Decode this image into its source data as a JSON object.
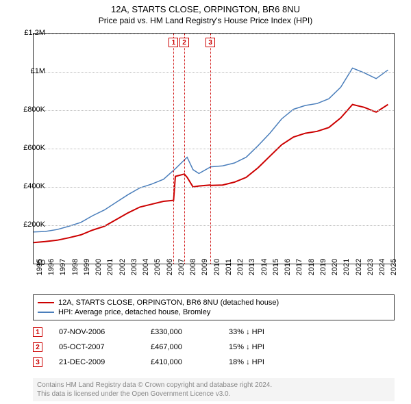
{
  "title": "12A, STARTS CLOSE, ORPINGTON, BR6 8NU",
  "subtitle": "Price paid vs. HM Land Registry's House Price Index (HPI)",
  "chart": {
    "type": "line",
    "background_color": "#ffffff",
    "grid_color": "#bbbbbb",
    "border_color": "#333333",
    "y_axis": {
      "min": 0,
      "max": 1200000,
      "ticks": [
        0,
        200000,
        400000,
        600000,
        800000,
        1000000,
        1200000
      ],
      "tick_labels": [
        "£0",
        "£200K",
        "£400K",
        "£600K",
        "£800K",
        "£1M",
        "£1.2M"
      ]
    },
    "x_axis": {
      "min": 1995,
      "max": 2025.5,
      "ticks": [
        1995,
        1996,
        1997,
        1998,
        1999,
        2000,
        2001,
        2002,
        2003,
        2004,
        2005,
        2006,
        2007,
        2008,
        2009,
        2010,
        2011,
        2012,
        2013,
        2014,
        2015,
        2016,
        2017,
        2018,
        2019,
        2020,
        2021,
        2022,
        2023,
        2024,
        2025
      ],
      "tick_labels": [
        "1995",
        "1996",
        "1997",
        "1998",
        "1999",
        "2000",
        "2001",
        "2002",
        "2003",
        "2004",
        "2005",
        "2006",
        "2007",
        "2008",
        "2009",
        "2010",
        "2011",
        "2012",
        "2013",
        "2014",
        "2015",
        "2016",
        "2017",
        "2018",
        "2019",
        "2020",
        "2021",
        "2022",
        "2023",
        "2024",
        "2025"
      ]
    },
    "series": [
      {
        "name": "property",
        "label": "12A, STARTS CLOSE, ORPINGTON, BR6 8NU (detached house)",
        "color": "#cc0000",
        "line_width": 2,
        "points": [
          [
            1995,
            110000
          ],
          [
            1996,
            115000
          ],
          [
            1997,
            122000
          ],
          [
            1998,
            135000
          ],
          [
            1999,
            150000
          ],
          [
            2000,
            175000
          ],
          [
            2001,
            195000
          ],
          [
            2002,
            230000
          ],
          [
            2003,
            265000
          ],
          [
            2004,
            295000
          ],
          [
            2005,
            310000
          ],
          [
            2006,
            325000
          ],
          [
            2006.85,
            330000
          ],
          [
            2007,
            455000
          ],
          [
            2007.76,
            467000
          ],
          [
            2008,
            450000
          ],
          [
            2008.5,
            400000
          ],
          [
            2009,
            405000
          ],
          [
            2009.97,
            410000
          ],
          [
            2010,
            408000
          ],
          [
            2011,
            410000
          ],
          [
            2012,
            425000
          ],
          [
            2013,
            450000
          ],
          [
            2014,
            500000
          ],
          [
            2015,
            560000
          ],
          [
            2016,
            620000
          ],
          [
            2017,
            660000
          ],
          [
            2018,
            680000
          ],
          [
            2019,
            690000
          ],
          [
            2020,
            710000
          ],
          [
            2021,
            760000
          ],
          [
            2022,
            830000
          ],
          [
            2023,
            815000
          ],
          [
            2024,
            790000
          ],
          [
            2025,
            830000
          ]
        ]
      },
      {
        "name": "hpi",
        "label": "HPI: Average price, detached house, Bromley",
        "color": "#4a7ebb",
        "line_width": 1.5,
        "points": [
          [
            1995,
            165000
          ],
          [
            1996,
            168000
          ],
          [
            1997,
            178000
          ],
          [
            1998,
            195000
          ],
          [
            1999,
            215000
          ],
          [
            2000,
            250000
          ],
          [
            2001,
            280000
          ],
          [
            2002,
            320000
          ],
          [
            2003,
            360000
          ],
          [
            2004,
            395000
          ],
          [
            2005,
            415000
          ],
          [
            2006,
            440000
          ],
          [
            2007,
            495000
          ],
          [
            2008,
            555000
          ],
          [
            2008.5,
            490000
          ],
          [
            2009,
            470000
          ],
          [
            2010,
            505000
          ],
          [
            2011,
            510000
          ],
          [
            2012,
            525000
          ],
          [
            2013,
            555000
          ],
          [
            2014,
            615000
          ],
          [
            2015,
            680000
          ],
          [
            2016,
            755000
          ],
          [
            2017,
            805000
          ],
          [
            2018,
            825000
          ],
          [
            2019,
            835000
          ],
          [
            2020,
            860000
          ],
          [
            2021,
            920000
          ],
          [
            2022,
            1020000
          ],
          [
            2023,
            995000
          ],
          [
            2024,
            965000
          ],
          [
            2025,
            1010000
          ]
        ]
      }
    ],
    "transactions": [
      {
        "n": "1",
        "x": 2006.85,
        "date": "07-NOV-2006",
        "price": "£330,000",
        "diff": "33% ↓ HPI",
        "color": "#cc0000"
      },
      {
        "n": "2",
        "x": 2007.76,
        "date": "05-OCT-2007",
        "price": "£467,000",
        "diff": "15% ↓ HPI",
        "color": "#cc0000"
      },
      {
        "n": "3",
        "x": 2009.97,
        "date": "21-DEC-2009",
        "price": "£410,000",
        "diff": "18% ↓ HPI",
        "color": "#cc0000"
      }
    ]
  },
  "footer_line1": "Contains HM Land Registry data © Crown copyright and database right 2024.",
  "footer_line2": "This data is licensed under the Open Government Licence v3.0."
}
